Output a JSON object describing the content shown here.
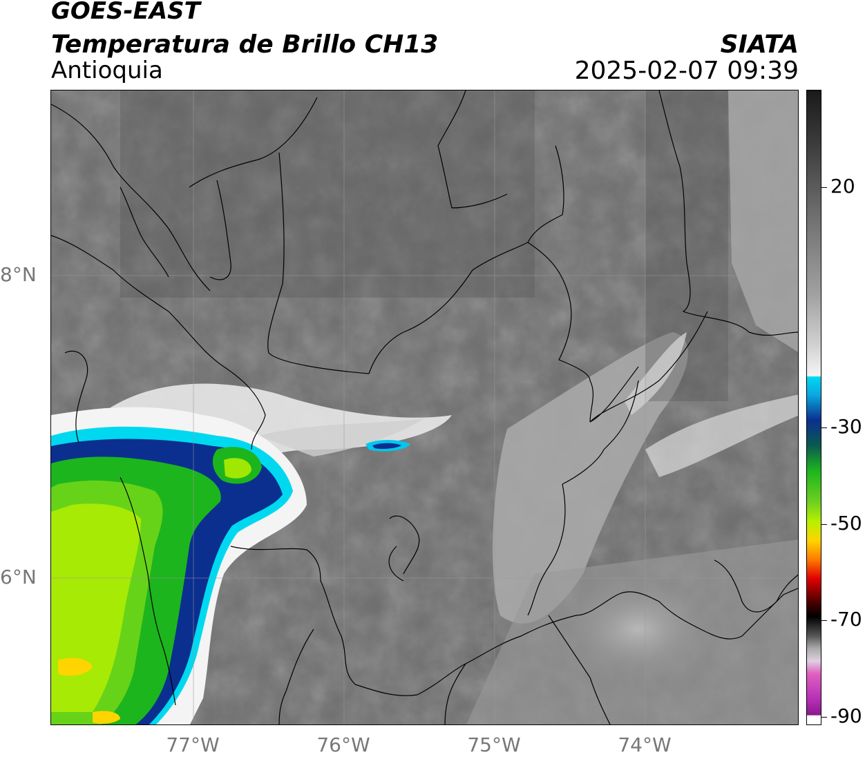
{
  "header": {
    "satellite": "GOES-EAST",
    "product": "Temperatura de Brillo CH13",
    "region": "Antioquia",
    "organization": "SIATA",
    "timestamp": "2025-02-07 09:39"
  },
  "axes": {
    "latitude_labels": [
      "8°N",
      "6°N"
    ],
    "longitude_labels": [
      "77°W",
      "76°W",
      "75°W",
      "74°W"
    ]
  },
  "colorbar": {
    "labels": [
      "20",
      "-30",
      "-50",
      "-70",
      "-90"
    ],
    "colors": {
      "warm_top": "#1a1a1a",
      "warm_bottom": "#f5f5f5",
      "cyan": "#00d8f0",
      "blue": "#0b2f8f",
      "green": "#1db51d",
      "lime": "#b8f000",
      "yellow": "#ffd400",
      "orange": "#ff7a00",
      "red": "#e00000",
      "dark_red": "#400000",
      "magenta": "#b72fb7"
    }
  }
}
